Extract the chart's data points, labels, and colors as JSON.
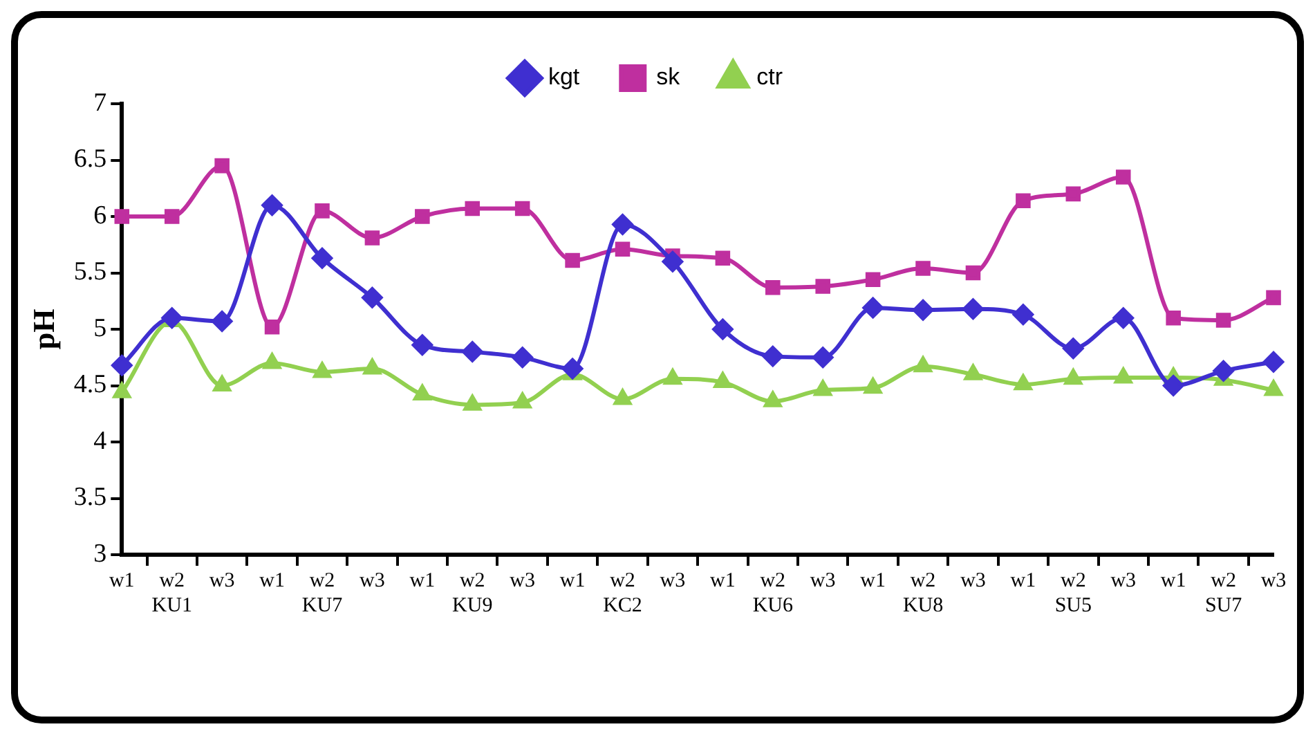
{
  "chart_data": {
    "type": "line",
    "ylabel": "pH",
    "categories": [
      "w1",
      "w2\nKU1",
      "w3",
      "w1",
      "w2\nKU7",
      "w3",
      "w1",
      "w2\nKU9",
      "w3",
      "w1",
      "w2\nKC2",
      "w3",
      "w1",
      "w2\nKU6",
      "w3",
      "w1",
      "w2\nKU8",
      "w3",
      "w1",
      "w2\nSU5",
      "w3",
      "w1",
      "w2\nSU7",
      "w3"
    ],
    "series": [
      {
        "name": "kgt",
        "color": "#3f2fd0",
        "marker": "diamond",
        "values": [
          4.68,
          5.1,
          5.07,
          6.1,
          5.63,
          5.28,
          4.86,
          4.8,
          4.75,
          4.65,
          5.93,
          5.6,
          5.0,
          4.76,
          4.75,
          5.19,
          5.17,
          5.18,
          5.13,
          4.83,
          5.1,
          4.5,
          4.63,
          4.71
        ]
      },
      {
        "name": "sk",
        "color": "#bf2f9f",
        "marker": "square",
        "values": [
          6.0,
          6.0,
          6.45,
          5.02,
          6.05,
          5.81,
          6.0,
          6.07,
          6.07,
          5.61,
          5.71,
          5.65,
          5.63,
          5.37,
          5.38,
          5.44,
          5.54,
          5.5,
          6.14,
          6.2,
          6.35,
          5.1,
          5.08,
          5.28
        ]
      },
      {
        "name": "ctr",
        "color": "#92d050",
        "marker": "triangle",
        "values": [
          4.44,
          5.07,
          4.5,
          4.7,
          4.62,
          4.65,
          4.42,
          4.33,
          4.35,
          4.6,
          4.38,
          4.56,
          4.53,
          4.36,
          4.46,
          4.48,
          4.67,
          4.6,
          4.51,
          4.56,
          4.57,
          4.57,
          4.55,
          4.46
        ]
      }
    ],
    "ylim": [
      3,
      7
    ],
    "yticks": [
      3,
      3.5,
      4,
      4.5,
      5,
      5.5,
      6,
      6.5,
      7
    ],
    "grid": false,
    "legend": "top"
  }
}
